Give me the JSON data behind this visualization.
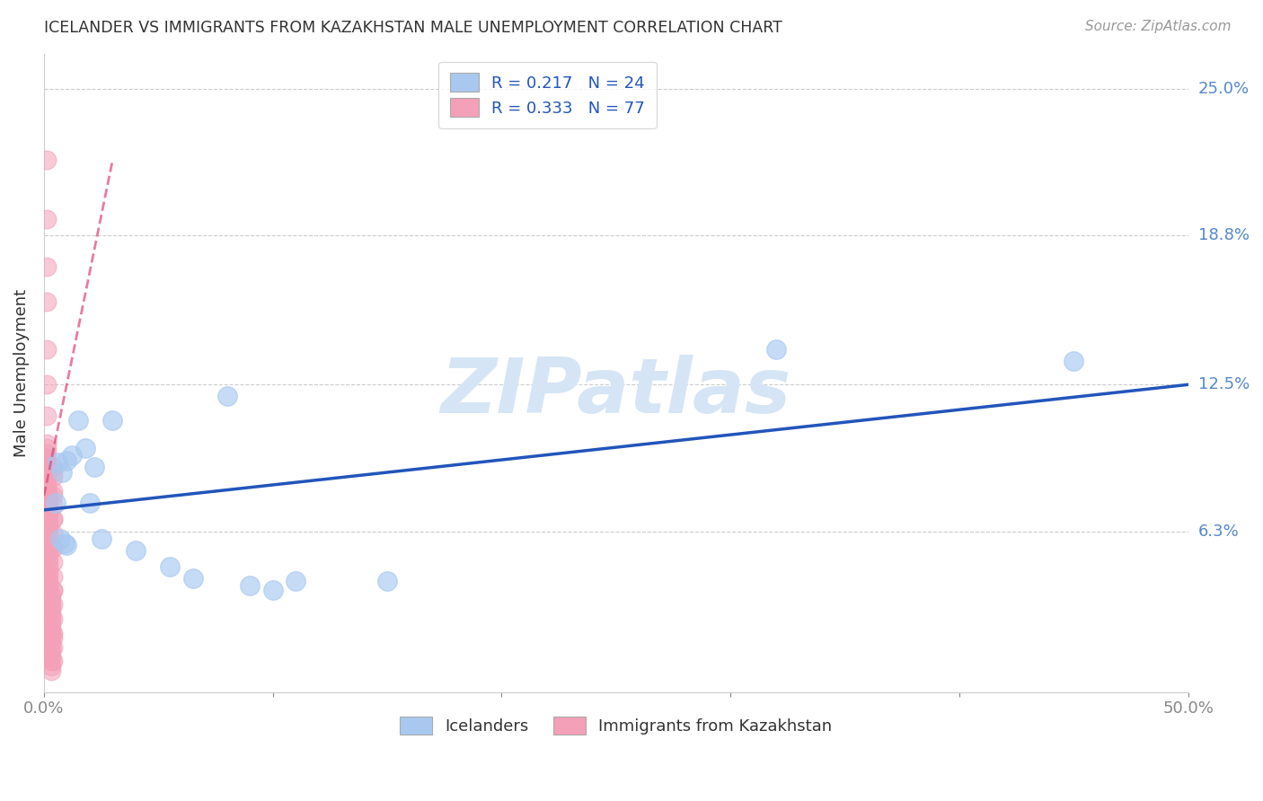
{
  "title": "ICELANDER VS IMMIGRANTS FROM KAZAKHSTAN MALE UNEMPLOYMENT CORRELATION CHART",
  "source": "Source: ZipAtlas.com",
  "ylabel": "Male Unemployment",
  "xlim": [
    0.0,
    0.5
  ],
  "ylim": [
    -0.005,
    0.265
  ],
  "icelanders_R": 0.217,
  "icelanders_N": 24,
  "kazakhstan_R": 0.333,
  "kazakhstan_N": 77,
  "icelander_color": "#A8C8F0",
  "icelander_edge": "#7AAADE",
  "kazakhstan_color": "#F4A0B8",
  "kazakhstan_edge": "#E07090",
  "icelander_line_color": "#2255BB",
  "kazakhstan_line_color": "#DD4477",
  "watermark_text": "ZIPatlas",
  "watermark_color": "#D5E5F5",
  "legend_label_1": "Icelanders",
  "legend_label_2": "Immigrants from Kazakhstan",
  "y_tick_vals": [
    0.063,
    0.125,
    0.188,
    0.25
  ],
  "y_tick_labels": [
    "6.3%",
    "12.5%",
    "18.8%",
    "25.0%"
  ],
  "x_ticks": [
    0.0,
    0.1,
    0.2,
    0.3,
    0.4,
    0.5
  ],
  "x_tick_labels": [
    "0.0%",
    "",
    "",
    "",
    "",
    "50.0%"
  ],
  "icelanders_x": [
    0.005,
    0.006,
    0.007,
    0.008,
    0.009,
    0.01,
    0.01,
    0.012,
    0.015,
    0.018,
    0.02,
    0.022,
    0.025,
    0.03,
    0.04,
    0.055,
    0.065,
    0.08,
    0.09,
    0.1,
    0.11,
    0.15,
    0.32,
    0.45
  ],
  "icelanders_y": [
    0.075,
    0.092,
    0.06,
    0.088,
    0.058,
    0.093,
    0.057,
    0.095,
    0.11,
    0.098,
    0.075,
    0.09,
    0.06,
    0.11,
    0.055,
    0.048,
    0.043,
    0.12,
    0.04,
    0.038,
    0.042,
    0.042,
    0.14,
    0.135
  ],
  "kazakhstan_x": [
    0.001,
    0.001,
    0.001,
    0.001,
    0.001,
    0.001,
    0.001,
    0.001,
    0.001,
    0.001,
    0.001,
    0.001,
    0.001,
    0.001,
    0.001,
    0.001,
    0.001,
    0.001,
    0.002,
    0.002,
    0.002,
    0.002,
    0.002,
    0.002,
    0.002,
    0.002,
    0.002,
    0.002,
    0.002,
    0.002,
    0.002,
    0.002,
    0.002,
    0.002,
    0.002,
    0.002,
    0.002,
    0.002,
    0.002,
    0.003,
    0.003,
    0.003,
    0.003,
    0.003,
    0.003,
    0.003,
    0.003,
    0.003,
    0.003,
    0.003,
    0.003,
    0.003,
    0.003,
    0.003,
    0.003,
    0.003,
    0.004,
    0.004,
    0.004,
    0.004,
    0.004,
    0.004,
    0.004,
    0.004,
    0.004,
    0.004,
    0.004,
    0.004,
    0.004,
    0.004,
    0.004,
    0.004,
    0.004,
    0.004,
    0.004,
    0.004,
    0.004
  ],
  "kazakhstan_y": [
    0.22,
    0.195,
    0.175,
    0.16,
    0.14,
    0.125,
    0.112,
    0.1,
    0.098,
    0.096,
    0.094,
    0.092,
    0.09,
    0.088,
    0.086,
    0.084,
    0.082,
    0.08,
    0.078,
    0.076,
    0.074,
    0.072,
    0.07,
    0.068,
    0.066,
    0.064,
    0.062,
    0.06,
    0.058,
    0.056,
    0.054,
    0.052,
    0.05,
    0.048,
    0.046,
    0.044,
    0.042,
    0.04,
    0.038,
    0.036,
    0.034,
    0.032,
    0.03,
    0.028,
    0.026,
    0.024,
    0.022,
    0.02,
    0.018,
    0.016,
    0.014,
    0.012,
    0.01,
    0.008,
    0.006,
    0.004,
    0.09,
    0.086,
    0.08,
    0.074,
    0.068,
    0.062,
    0.056,
    0.05,
    0.044,
    0.038,
    0.032,
    0.026,
    0.02,
    0.014,
    0.008,
    0.088,
    0.078,
    0.068,
    0.056,
    0.038,
    0.018
  ],
  "kaz_line_x0": 0.0,
  "kaz_line_x1": 0.03,
  "icel_line_x0": 0.0,
  "icel_line_x1": 0.5,
  "icel_line_y0": 0.072,
  "icel_line_y1": 0.125,
  "kaz_line_y0": 0.078,
  "kaz_line_y1": 0.22
}
